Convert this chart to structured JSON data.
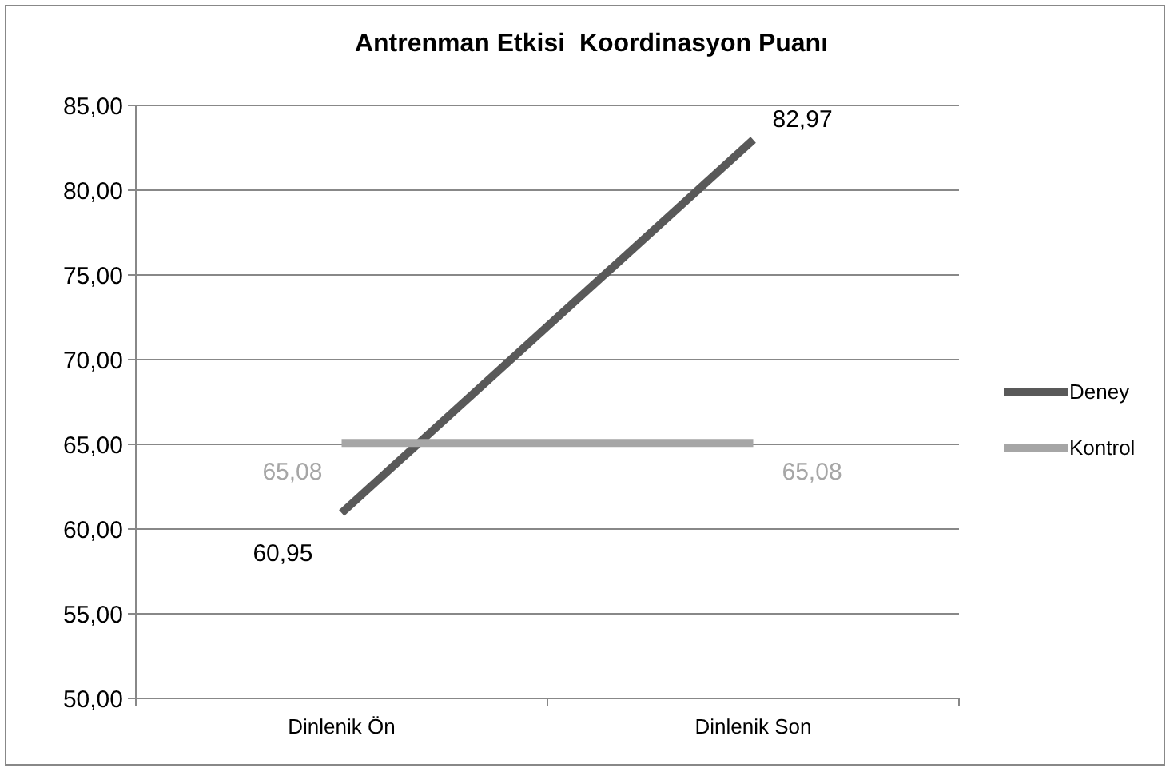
{
  "chart_data": {
    "type": "line",
    "title": "Antrenman Etkisi  Koordinasyon Puanı",
    "categories": [
      "Dinlenik Ön",
      "Dinlenik Son"
    ],
    "series": [
      {
        "name": "Deney",
        "color": "#595959",
        "values": [
          60.95,
          82.97
        ],
        "value_labels": [
          "60,95",
          "82,97"
        ]
      },
      {
        "name": "Kontrol",
        "color": "#a6a6a6",
        "values": [
          65.08,
          65.08
        ],
        "value_labels": [
          "65,08",
          "65,08"
        ]
      }
    ],
    "ylim": [
      50,
      85
    ],
    "yticks": [
      {
        "value": 50,
        "label": "50,00"
      },
      {
        "value": 55,
        "label": "55,00"
      },
      {
        "value": 60,
        "label": "60,00"
      },
      {
        "value": 65,
        "label": "65,00"
      },
      {
        "value": 70,
        "label": "70,00"
      },
      {
        "value": 75,
        "label": "75,00"
      },
      {
        "value": 80,
        "label": "80,00"
      },
      {
        "value": 85,
        "label": "85,00"
      }
    ],
    "grid": "y",
    "legend": "right",
    "marker": "none",
    "line_style": "solid"
  }
}
